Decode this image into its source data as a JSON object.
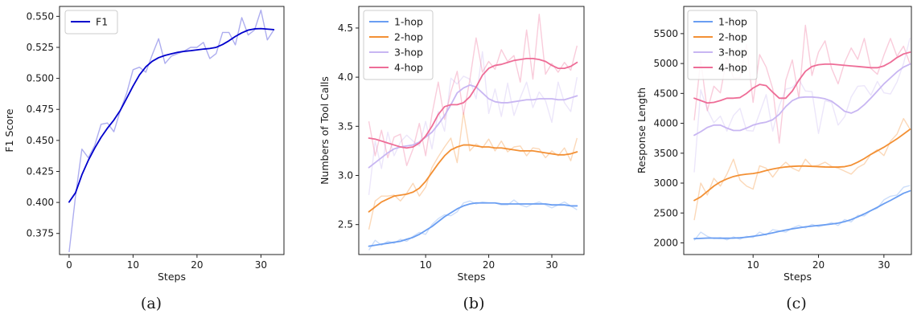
{
  "chart_data": [
    {
      "type": "line",
      "caption": "(a)",
      "xlabel": "Steps",
      "ylabel": "F1 Score",
      "xlim": [
        -1.5,
        33.6
      ],
      "ylim": [
        0.358,
        0.558
      ],
      "xticks": [
        0,
        10,
        20,
        30
      ],
      "yticks": [
        0.375,
        0.4,
        0.425,
        0.45,
        0.475,
        0.5,
        0.525,
        0.55
      ],
      "ytick_labels": [
        "0.375",
        "0.400",
        "0.425",
        "0.450",
        "0.475",
        "0.500",
        "0.525",
        "0.550"
      ],
      "legend": "top-left",
      "series": [
        {
          "name": "F1",
          "color": "#0000cc",
          "x": [
            0,
            1,
            2,
            3,
            4,
            5,
            6,
            7,
            8,
            9,
            10,
            11,
            12,
            13,
            14,
            15,
            16,
            17,
            18,
            19,
            20,
            21,
            22,
            23,
            24,
            25,
            26,
            27,
            28,
            29,
            30,
            31,
            32
          ],
          "smoothed": [
            0.4003,
            0.4078,
            0.4223,
            0.4339,
            0.4437,
            0.4525,
            0.4599,
            0.4664,
            0.4742,
            0.4839,
            0.4938,
            0.5028,
            0.5093,
            0.5138,
            0.5167,
            0.5185,
            0.5198,
            0.521,
            0.5218,
            0.5223,
            0.523,
            0.5236,
            0.5241,
            0.525,
            0.5273,
            0.5303,
            0.5338,
            0.5367,
            0.5389,
            0.5399,
            0.5401,
            0.5397,
            0.5393
          ],
          "raw": [
            0.36,
            0.405,
            0.443,
            0.436,
            0.446,
            0.463,
            0.464,
            0.457,
            0.474,
            0.488,
            0.507,
            0.509,
            0.505,
            0.519,
            0.532,
            0.512,
            0.518,
            0.52,
            0.522,
            0.525,
            0.525,
            0.529,
            0.516,
            0.52,
            0.537,
            0.537,
            0.527,
            0.549,
            0.535,
            0.539,
            0.555,
            0.531,
            0.539
          ]
        }
      ]
    },
    {
      "type": "line",
      "caption": "(b)",
      "xlabel": "Steps",
      "ylabel": "Numbers of Tool Calls",
      "xlim": [
        -0.6,
        35.1
      ],
      "ylim": [
        2.195,
        4.72
      ],
      "xticks": [
        10,
        20,
        30
      ],
      "yticks": [
        2.5,
        3.0,
        3.5,
        4.0,
        4.5
      ],
      "ytick_labels": [
        "2.5",
        "3.0",
        "3.5",
        "4.0",
        "4.5"
      ],
      "legend": "top-left",
      "series": [
        {
          "name": "1-hop",
          "color": "#6a9ef2",
          "x": [
            1,
            2,
            3,
            4,
            5,
            6,
            7,
            8,
            9,
            10,
            11,
            12,
            13,
            14,
            15,
            16,
            17,
            18,
            19,
            20,
            21,
            22,
            23,
            24,
            25,
            26,
            27,
            28,
            29,
            30,
            31,
            32,
            33,
            34
          ],
          "smoothed": [
            2.28,
            2.29,
            2.3,
            2.31,
            2.32,
            2.33,
            2.35,
            2.37,
            2.4,
            2.44,
            2.48,
            2.53,
            2.58,
            2.62,
            2.66,
            2.69,
            2.71,
            2.72,
            2.72,
            2.72,
            2.72,
            2.71,
            2.71,
            2.71,
            2.71,
            2.71,
            2.71,
            2.71,
            2.71,
            2.7,
            2.7,
            2.7,
            2.69,
            2.69
          ],
          "raw": [
            2.24,
            2.34,
            2.29,
            2.33,
            2.31,
            2.35,
            2.33,
            2.38,
            2.42,
            2.4,
            2.5,
            2.56,
            2.6,
            2.59,
            2.63,
            2.72,
            2.74,
            2.71,
            2.73,
            2.72,
            2.72,
            2.7,
            2.7,
            2.75,
            2.7,
            2.68,
            2.71,
            2.73,
            2.7,
            2.67,
            2.7,
            2.73,
            2.69,
            2.65
          ]
        },
        {
          "name": "2-hop",
          "color": "#f39034",
          "x": [
            1,
            2,
            3,
            4,
            5,
            6,
            7,
            8,
            9,
            10,
            11,
            12,
            13,
            14,
            15,
            16,
            17,
            18,
            19,
            20,
            21,
            22,
            23,
            24,
            25,
            26,
            27,
            28,
            29,
            30,
            31,
            32,
            33,
            34
          ],
          "smoothed": [
            2.63,
            2.68,
            2.73,
            2.76,
            2.79,
            2.8,
            2.81,
            2.83,
            2.87,
            2.94,
            3.03,
            3.12,
            3.2,
            3.26,
            3.29,
            3.31,
            3.31,
            3.3,
            3.29,
            3.29,
            3.28,
            3.28,
            3.27,
            3.26,
            3.25,
            3.25,
            3.25,
            3.24,
            3.23,
            3.22,
            3.21,
            3.21,
            3.22,
            3.24
          ],
          "raw": [
            2.45,
            2.74,
            2.79,
            2.79,
            2.8,
            2.74,
            2.82,
            2.92,
            2.79,
            2.88,
            3.08,
            3.19,
            3.29,
            3.38,
            3.13,
            3.64,
            3.25,
            3.32,
            3.28,
            3.37,
            3.25,
            3.35,
            3.24,
            3.29,
            3.3,
            3.2,
            3.28,
            3.27,
            3.18,
            3.25,
            3.2,
            3.28,
            3.15,
            3.38
          ]
        },
        {
          "name": "3-hop",
          "color": "#c8b6f2",
          "x": [
            1,
            2,
            3,
            4,
            5,
            6,
            7,
            8,
            9,
            10,
            11,
            12,
            13,
            14,
            15,
            16,
            17,
            18,
            19,
            20,
            21,
            22,
            23,
            24,
            25,
            26,
            27,
            28,
            29,
            30,
            31,
            32,
            33,
            34
          ],
          "smoothed": [
            3.08,
            3.13,
            3.18,
            3.23,
            3.27,
            3.29,
            3.3,
            3.31,
            3.34,
            3.39,
            3.44,
            3.52,
            3.61,
            3.72,
            3.84,
            3.89,
            3.92,
            3.9,
            3.84,
            3.78,
            3.75,
            3.74,
            3.74,
            3.75,
            3.76,
            3.77,
            3.77,
            3.78,
            3.78,
            3.78,
            3.77,
            3.77,
            3.79,
            3.81
          ],
          "raw": [
            2.8,
            3.35,
            3.07,
            3.44,
            3.2,
            3.34,
            3.41,
            3.35,
            3.3,
            3.55,
            3.27,
            3.65,
            3.45,
            3.99,
            3.93,
            4.01,
            3.98,
            3.78,
            4.26,
            3.63,
            3.88,
            3.6,
            3.94,
            3.61,
            3.79,
            3.95,
            3.69,
            3.85,
            3.76,
            3.54,
            3.95,
            3.74,
            3.65,
            4.0
          ]
        },
        {
          "name": "4-hop",
          "color": "#ee6d97",
          "x": [
            1,
            2,
            3,
            4,
            5,
            6,
            7,
            8,
            9,
            10,
            11,
            12,
            13,
            14,
            15,
            16,
            17,
            18,
            19,
            20,
            21,
            22,
            23,
            24,
            25,
            26,
            27,
            28,
            29,
            30,
            31,
            32,
            33,
            34
          ],
          "smoothed": [
            3.38,
            3.37,
            3.35,
            3.33,
            3.31,
            3.29,
            3.28,
            3.29,
            3.33,
            3.4,
            3.5,
            3.62,
            3.7,
            3.72,
            3.72,
            3.74,
            3.8,
            3.9,
            4.02,
            4.09,
            4.12,
            4.13,
            4.15,
            4.17,
            4.18,
            4.19,
            4.19,
            4.18,
            4.16,
            4.12,
            4.09,
            4.09,
            4.11,
            4.15
          ],
          "raw": [
            3.55,
            3.2,
            3.46,
            3.18,
            3.39,
            3.42,
            3.1,
            3.27,
            3.53,
            3.2,
            3.62,
            3.95,
            3.57,
            3.85,
            4.06,
            3.62,
            3.97,
            4.4,
            4.05,
            4.16,
            4.08,
            4.28,
            4.16,
            4.22,
            3.95,
            4.48,
            3.98,
            4.64,
            4.03,
            4.14,
            4.05,
            4.15,
            4.07,
            4.32
          ]
        }
      ]
    },
    {
      "type": "line",
      "caption": "(c)",
      "xlabel": "Steps",
      "ylabel": "Response Length",
      "xlim": [
        -0.6,
        34.2
      ],
      "ylim": [
        1805,
        5955
      ],
      "xticks": [
        10,
        20,
        30
      ],
      "yticks": [
        2000,
        2500,
        3000,
        3500,
        4000,
        4500,
        5000,
        5500
      ],
      "ytick_labels": [
        "2000",
        "2500",
        "3000",
        "3500",
        "4000",
        "4500",
        "5000",
        "5500"
      ],
      "legend": "top-left",
      "series": [
        {
          "name": "1-hop",
          "color": "#6a9ef2",
          "x": [
            1,
            2,
            3,
            4,
            5,
            6,
            7,
            8,
            9,
            10,
            11,
            12,
            13,
            14,
            15,
            16,
            17,
            18,
            19,
            20,
            21,
            22,
            23,
            24,
            25,
            26,
            27,
            28,
            29,
            30,
            31,
            32,
            33,
            34
          ],
          "smoothed": [
            2070,
            2075,
            2080,
            2080,
            2078,
            2078,
            2080,
            2085,
            2095,
            2110,
            2125,
            2145,
            2168,
            2192,
            2215,
            2235,
            2252,
            2268,
            2280,
            2292,
            2303,
            2315,
            2330,
            2355,
            2390,
            2435,
            2485,
            2540,
            2595,
            2655,
            2710,
            2770,
            2830,
            2870
          ],
          "raw": [
            2040,
            2180,
            2110,
            2070,
            2090,
            2050,
            2100,
            2060,
            2110,
            2090,
            2180,
            2130,
            2220,
            2200,
            2180,
            2250,
            2290,
            2250,
            2310,
            2270,
            2300,
            2340,
            2290,
            2390,
            2350,
            2460,
            2450,
            2540,
            2580,
            2720,
            2780,
            2800,
            2930,
            2960
          ]
        },
        {
          "name": "2-hop",
          "color": "#f39034",
          "x": [
            1,
            2,
            3,
            4,
            5,
            6,
            7,
            8,
            9,
            10,
            11,
            12,
            13,
            14,
            15,
            16,
            17,
            18,
            19,
            20,
            21,
            22,
            23,
            24,
            25,
            26,
            27,
            28,
            29,
            30,
            31,
            32,
            33,
            34
          ],
          "smoothed": [
            2710,
            2770,
            2860,
            2950,
            3020,
            3070,
            3110,
            3135,
            3150,
            3160,
            3180,
            3210,
            3235,
            3255,
            3270,
            3280,
            3285,
            3285,
            3280,
            3275,
            3270,
            3268,
            3268,
            3275,
            3300,
            3350,
            3410,
            3480,
            3540,
            3600,
            3670,
            3740,
            3820,
            3900
          ],
          "raw": [
            2380,
            3000,
            2800,
            3080,
            2950,
            3150,
            3400,
            3050,
            2950,
            2900,
            3290,
            3250,
            3100,
            3250,
            3350,
            3250,
            3200,
            3400,
            3280,
            3300,
            3350,
            3280,
            3250,
            3200,
            3150,
            3260,
            3320,
            3480,
            3560,
            3460,
            3700,
            3820,
            4080,
            3900
          ]
        },
        {
          "name": "3-hop",
          "color": "#c8b6f2",
          "x": [
            1,
            2,
            3,
            4,
            5,
            6,
            7,
            8,
            9,
            10,
            11,
            12,
            13,
            14,
            15,
            16,
            17,
            18,
            19,
            20,
            21,
            22,
            23,
            24,
            25,
            26,
            27,
            28,
            29,
            30,
            31,
            32,
            33,
            34
          ],
          "smoothed": [
            3800,
            3860,
            3930,
            3970,
            3970,
            3920,
            3880,
            3880,
            3920,
            3970,
            4000,
            4020,
            4060,
            4150,
            4280,
            4380,
            4430,
            4440,
            4440,
            4430,
            4410,
            4370,
            4290,
            4200,
            4170,
            4220,
            4310,
            4420,
            4540,
            4660,
            4760,
            4860,
            4940,
            4990
          ],
          "raw": [
            3180,
            4560,
            4230,
            4010,
            4120,
            3870,
            4130,
            4250,
            3880,
            3870,
            4170,
            4480,
            3870,
            4290,
            4570,
            4600,
            4730,
            4540,
            4530,
            3830,
            4380,
            4350,
            3970,
            4110,
            4440,
            4620,
            4630,
            4470,
            4700,
            4510,
            4490,
            4690,
            5000,
            5430
          ]
        },
        {
          "name": "4-hop",
          "color": "#ee6d97",
          "x": [
            1,
            2,
            3,
            4,
            5,
            6,
            7,
            8,
            9,
            10,
            11,
            12,
            13,
            14,
            15,
            16,
            17,
            18,
            19,
            20,
            21,
            22,
            23,
            24,
            25,
            26,
            27,
            28,
            29,
            30,
            31,
            32,
            33,
            34
          ],
          "smoothed": [
            4420,
            4380,
            4340,
            4350,
            4380,
            4420,
            4420,
            4430,
            4500,
            4590,
            4650,
            4630,
            4520,
            4420,
            4420,
            4540,
            4720,
            4870,
            4950,
            4980,
            4990,
            4990,
            4980,
            4970,
            4960,
            4950,
            4940,
            4930,
            4930,
            4960,
            5020,
            5100,
            5160,
            5190
          ],
          "raw": [
            4050,
            5060,
            4210,
            4620,
            4510,
            5110,
            4760,
            4760,
            5320,
            4350,
            5150,
            4940,
            4580,
            3670,
            4720,
            5060,
            4420,
            5640,
            4800,
            5190,
            5380,
            4920,
            4660,
            5020,
            5260,
            5070,
            5420,
            4920,
            4820,
            5140,
            5420,
            5120,
            5290,
            4990
          ]
        }
      ]
    }
  ]
}
